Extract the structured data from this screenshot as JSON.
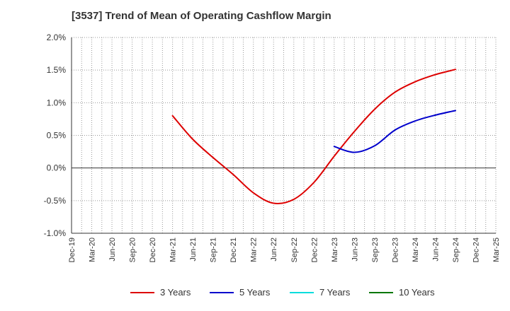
{
  "chart_data": {
    "type": "line",
    "title": "[3537]  Trend of Mean of Operating Cashflow Margin",
    "xlabel": "",
    "ylabel": "",
    "ylim": [
      -1.0,
      2.0
    ],
    "y_ticks": [
      "2.0%",
      "1.5%",
      "1.0%",
      "0.5%",
      "0.0%",
      "-0.5%",
      "-1.0%"
    ],
    "y_tick_values": [
      2.0,
      1.5,
      1.0,
      0.5,
      0.0,
      -0.5,
      -1.0
    ],
    "categories": [
      "Dec-19",
      "Mar-20",
      "Jun-20",
      "Sep-20",
      "Dec-20",
      "Mar-21",
      "Jun-21",
      "Sep-21",
      "Dec-21",
      "Mar-22",
      "Jun-22",
      "Sep-22",
      "Dec-22",
      "Mar-23",
      "Jun-23",
      "Sep-23",
      "Dec-23",
      "Mar-24",
      "Jun-24",
      "Sep-24",
      "Dec-24",
      "Mar-25"
    ],
    "grid": true,
    "legend_position": "bottom",
    "series": [
      {
        "name": "3 Years",
        "color": "#dd0000",
        "points": [
          [
            "Mar-21",
            0.8
          ],
          [
            "Jun-21",
            0.44
          ],
          [
            "Sep-21",
            0.16
          ],
          [
            "Dec-21",
            -0.1
          ],
          [
            "Mar-22",
            -0.38
          ],
          [
            "Jun-22",
            -0.54
          ],
          [
            "Sep-22",
            -0.48
          ],
          [
            "Dec-22",
            -0.22
          ],
          [
            "Mar-23",
            0.18
          ],
          [
            "Jun-23",
            0.56
          ],
          [
            "Sep-23",
            0.9
          ],
          [
            "Dec-23",
            1.16
          ],
          [
            "Mar-24",
            1.32
          ],
          [
            "Jun-24",
            1.43
          ],
          [
            "Sep-24",
            1.51
          ]
        ]
      },
      {
        "name": "5 Years",
        "color": "#0000cc",
        "points": [
          [
            "Mar-23",
            0.33
          ],
          [
            "Jun-23",
            0.24
          ],
          [
            "Sep-23",
            0.34
          ],
          [
            "Dec-23",
            0.58
          ],
          [
            "Mar-24",
            0.72
          ],
          [
            "Jun-24",
            0.81
          ],
          [
            "Sep-24",
            0.88
          ]
        ]
      },
      {
        "name": "7 Years",
        "color": "#00dddd",
        "points": []
      },
      {
        "name": "10 Years",
        "color": "#007700",
        "points": []
      }
    ]
  }
}
